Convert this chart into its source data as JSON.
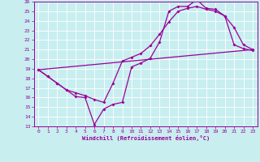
{
  "xlabel": "Windchill (Refroidissement éolien,°C)",
  "bg_color": "#c8eef0",
  "line_color": "#990099",
  "grid_color": "#ffffff",
  "xlim": [
    -0.5,
    23.5
  ],
  "ylim": [
    13,
    26
  ],
  "xticks": [
    0,
    1,
    2,
    3,
    4,
    5,
    6,
    7,
    8,
    9,
    10,
    11,
    12,
    13,
    14,
    15,
    16,
    17,
    18,
    19,
    20,
    21,
    22,
    23
  ],
  "yticks": [
    13,
    14,
    15,
    16,
    17,
    18,
    19,
    20,
    21,
    22,
    23,
    24,
    25,
    26
  ],
  "line1_x": [
    0,
    1,
    2,
    3,
    4,
    5,
    6,
    7,
    8,
    9,
    10,
    11,
    12,
    13,
    14,
    15,
    16,
    17,
    18,
    19,
    20,
    21,
    22,
    23
  ],
  "line1_y": [
    18.9,
    18.2,
    17.5,
    16.8,
    16.1,
    16.0,
    13.2,
    14.8,
    15.3,
    15.5,
    19.2,
    19.6,
    20.1,
    21.8,
    25.0,
    25.5,
    25.5,
    26.2,
    25.3,
    25.2,
    24.5,
    23.3,
    21.5,
    21.0
  ],
  "line2_x": [
    0,
    1,
    2,
    3,
    4,
    5,
    6,
    7,
    8,
    9,
    10,
    11,
    12,
    13,
    14,
    15,
    16,
    17,
    18,
    19,
    20,
    21,
    22,
    23
  ],
  "line2_y": [
    18.9,
    18.2,
    17.5,
    16.8,
    16.5,
    16.2,
    15.8,
    15.5,
    17.5,
    19.8,
    20.2,
    20.6,
    21.4,
    22.6,
    23.9,
    25.0,
    25.3,
    25.5,
    25.2,
    25.0,
    24.5,
    21.5,
    21.1,
    20.9
  ],
  "line3_x": [
    0,
    23
  ],
  "line3_y": [
    18.9,
    21.0
  ],
  "markersize": 2.0,
  "linewidth": 0.9
}
